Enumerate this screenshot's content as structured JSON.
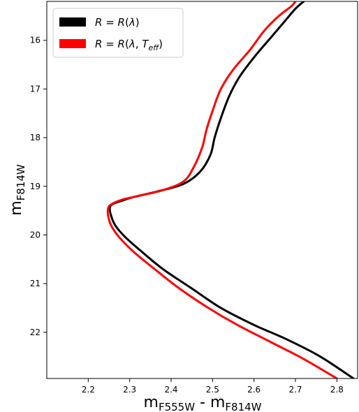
{
  "chart_data": {
    "type": "line",
    "xlabel": {
      "main": "m",
      "sub1": "F555W",
      "sep": " - ",
      "main2": "m",
      "sub2": "F814W"
    },
    "ylabel": {
      "main": "m",
      "sub": "F814W"
    },
    "xlim": [
      2.1,
      2.85
    ],
    "ylim": [
      22.95,
      15.2
    ],
    "y_inverted": true,
    "xticks": [
      2.2,
      2.3,
      2.4,
      2.5,
      2.6,
      2.7,
      2.8
    ],
    "xtick_labels": [
      "2.2",
      "2.3",
      "2.4",
      "2.5",
      "2.6",
      "2.7",
      "2.8"
    ],
    "yticks": [
      16,
      17,
      18,
      19,
      20,
      21,
      22
    ],
    "ytick_labels": [
      "16",
      "17",
      "18",
      "19",
      "20",
      "21",
      "22"
    ],
    "grid": false,
    "legend_position": "top-left",
    "colors": {
      "black": "#000000",
      "red": "#ff0000"
    },
    "series": [
      {
        "name": "R = R(λ)",
        "name_parts": {
          "lhs": "R",
          "eq": " = ",
          "fn": "R",
          "open": "(",
          "arg1": "λ",
          "close": ")"
        },
        "color": "#000000",
        "x": [
          2.84,
          2.76,
          2.68,
          2.6,
          2.52,
          2.45,
          2.38,
          2.33,
          2.29,
          2.265,
          2.255,
          2.252,
          2.258,
          2.28,
          2.31,
          2.37,
          2.43,
          2.47,
          2.495,
          2.505,
          2.52,
          2.54,
          2.565,
          2.6,
          2.64,
          2.675,
          2.7,
          2.72
        ],
        "y": [
          22.95,
          22.5,
          22.15,
          21.85,
          21.5,
          21.1,
          20.7,
          20.35,
          20.05,
          19.8,
          19.6,
          19.45,
          19.37,
          19.3,
          19.22,
          19.1,
          18.95,
          18.7,
          18.35,
          18.0,
          17.6,
          17.15,
          16.75,
          16.35,
          15.95,
          15.6,
          15.35,
          15.2
        ]
      },
      {
        "name": "R = R(λ, T_eff)",
        "name_parts": {
          "lhs": "R",
          "eq": " = ",
          "fn": "R",
          "open": "(",
          "arg1": "λ",
          "comma": ", ",
          "arg2": "T",
          "arg2_sub": "eff",
          "close": ")"
        },
        "color": "#ff0000",
        "x": [
          2.8,
          2.72,
          2.64,
          2.56,
          2.49,
          2.42,
          2.36,
          2.31,
          2.275,
          2.255,
          2.248,
          2.248,
          2.256,
          2.28,
          2.32,
          2.38,
          2.43,
          2.455,
          2.475,
          2.485,
          2.5,
          2.52,
          2.55,
          2.59,
          2.625,
          2.66,
          2.69,
          2.7
        ],
        "y": [
          22.95,
          22.55,
          22.2,
          21.85,
          21.5,
          21.1,
          20.7,
          20.35,
          20.05,
          19.8,
          19.6,
          19.45,
          19.37,
          19.28,
          19.2,
          19.08,
          18.9,
          18.6,
          18.2,
          17.85,
          17.45,
          17.0,
          16.6,
          16.2,
          15.8,
          15.5,
          15.3,
          15.2
        ]
      }
    ]
  }
}
